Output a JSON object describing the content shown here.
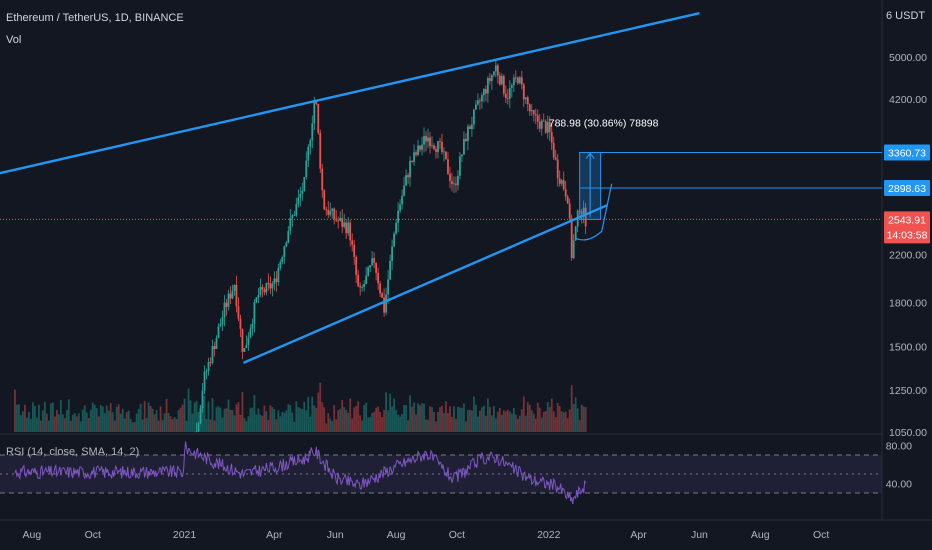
{
  "header": {
    "title": "Ethereum / TetherUS, 1D, BINANCE",
    "volume_label": "Vol",
    "rsi_label": "RSI (14, close, SMA, 14, 2)",
    "currency": "6 USDT"
  },
  "colors": {
    "background": "#131722",
    "up": "#26a69a",
    "down": "#ef5350",
    "trendline": "#2196f3",
    "rsi": "#7e57c2",
    "price_line": "#ef5350"
  },
  "chart_data": {
    "type": "candlestick",
    "price_axis": {
      "scale": "log",
      "ticks": [
        "5000.00",
        "4200.00",
        "2200.00",
        "1800.00",
        "1500.00",
        "1250.00",
        "1050.00"
      ]
    },
    "rsi_axis": {
      "ticks": [
        "80.00",
        "40.00"
      ],
      "bands": [
        70,
        30
      ]
    },
    "time_axis": {
      "ticks": [
        "Aug",
        "Oct",
        "2021",
        "Apr",
        "Jun",
        "Aug",
        "Oct",
        "2022",
        "Apr",
        "Jun",
        "Aug",
        "Oct"
      ]
    },
    "markers": [
      {
        "label": "3360.73",
        "value": 3360.73,
        "color": "#2196f3"
      },
      {
        "label": "2898.63",
        "value": 2898.63,
        "color": "#2196f3"
      },
      {
        "label": "2543.91",
        "sublabel": "14:03:58",
        "value": 2543.91,
        "color": "#ef5350"
      }
    ],
    "measurement_label": "788.98 (30.86%) 78898",
    "series": [
      {
        "name": "ETH/USDT",
        "points": [
          [
            "2021-01-01",
            730
          ],
          [
            "2021-01-20",
            1300
          ],
          [
            "2021-02-10",
            1750
          ],
          [
            "2021-02-20",
            1950
          ],
          [
            "2021-03-01",
            1450
          ],
          [
            "2021-03-15",
            1850
          ],
          [
            "2021-04-01",
            1950
          ],
          [
            "2021-04-15",
            2450
          ],
          [
            "2021-05-01",
            2950
          ],
          [
            "2021-05-12",
            4300
          ],
          [
            "2021-05-20",
            2700
          ],
          [
            "2021-06-01",
            2550
          ],
          [
            "2021-06-15",
            2450
          ],
          [
            "2021-06-25",
            1850
          ],
          [
            "2021-07-10",
            2150
          ],
          [
            "2021-07-20",
            1750
          ],
          [
            "2021-08-01",
            2550
          ],
          [
            "2021-08-15",
            3200
          ],
          [
            "2021-09-01",
            3600
          ],
          [
            "2021-09-15",
            3400
          ],
          [
            "2021-09-28",
            2900
          ],
          [
            "2021-10-10",
            3600
          ],
          [
            "2021-10-25",
            4200
          ],
          [
            "2021-11-09",
            4800
          ],
          [
            "2021-11-20",
            4250
          ],
          [
            "2021-12-01",
            4600
          ],
          [
            "2021-12-15",
            3900
          ],
          [
            "2022-01-01",
            3700
          ],
          [
            "2022-01-10",
            3100
          ],
          [
            "2022-01-20",
            2800
          ],
          [
            "2022-01-24",
            2200
          ],
          [
            "2022-02-01",
            2700
          ],
          [
            "2022-02-07",
            2543.91
          ]
        ]
      }
    ],
    "rsi": [
      [
        "2021-01-01",
        78
      ],
      [
        "2021-02-01",
        62
      ],
      [
        "2021-03-01",
        50
      ],
      [
        "2021-04-01",
        57
      ],
      [
        "2021-05-01",
        66
      ],
      [
        "2021-05-12",
        74
      ],
      [
        "2021-06-01",
        46
      ],
      [
        "2021-06-25",
        38
      ],
      [
        "2021-08-01",
        58
      ],
      [
        "2021-09-01",
        72
      ],
      [
        "2021-09-28",
        44
      ],
      [
        "2021-10-25",
        66
      ],
      [
        "2021-11-09",
        68
      ],
      [
        "2021-12-01",
        52
      ],
      [
        "2021-12-15",
        44
      ],
      [
        "2022-01-10",
        37
      ],
      [
        "2022-01-24",
        22
      ],
      [
        "2022-02-07",
        39
      ]
    ],
    "annotations": [
      {
        "type": "trendline",
        "from": [
          "2020-06-01",
          3000
        ],
        "to": [
          "2022-06-01",
          6000
        ]
      },
      {
        "type": "trendline",
        "from": [
          "2021-03-01",
          1400
        ],
        "to": [
          "2022-03-01",
          2700
        ]
      }
    ]
  }
}
